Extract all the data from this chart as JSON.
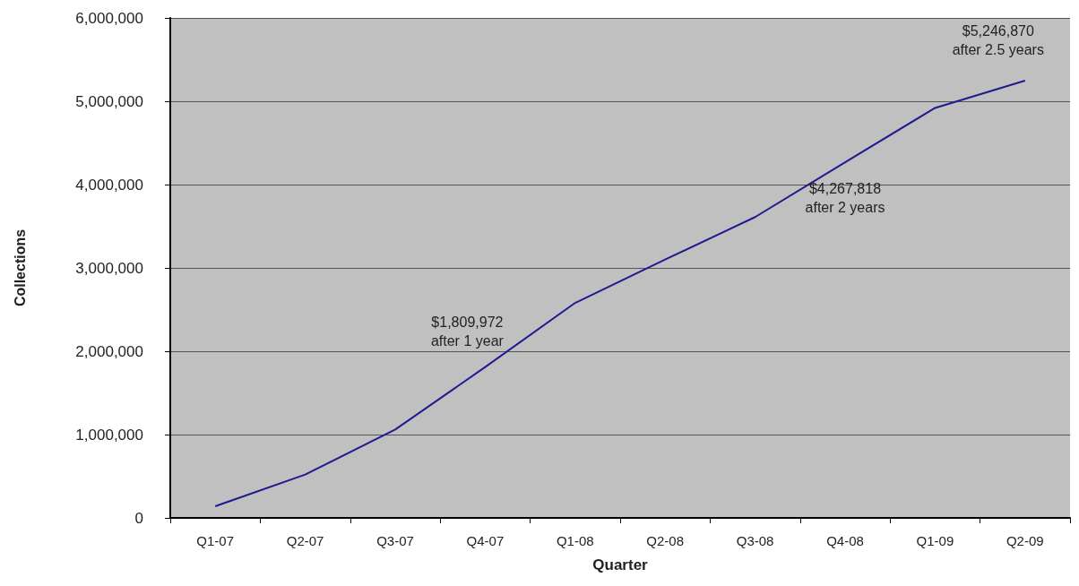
{
  "chart_data": {
    "type": "line",
    "xlabel": "Quarter",
    "ylabel": "Collections",
    "categories": [
      "Q1-07",
      "Q2-07",
      "Q3-07",
      "Q4-07",
      "Q1-08",
      "Q2-08",
      "Q3-08",
      "Q4-08",
      "Q1-09",
      "Q2-09"
    ],
    "series": [
      {
        "color": "#1f1a8f",
        "values": [
          140000,
          520000,
          1060000,
          1809972,
          2580000,
          3100000,
          3610000,
          4267818,
          4920000,
          5246870
        ]
      }
    ],
    "ylim": [
      0,
      6000000
    ],
    "yticks": [
      0,
      {
        "value": 1000000,
        "label": "1,000,000"
      },
      {
        "value": 2000000,
        "label": "2,000,000"
      },
      {
        "value": 3000000,
        "label": "3,000,000"
      },
      {
        "value": 4000000,
        "label": "4,000,000"
      },
      {
        "value": 5000000,
        "label": "5,000,000"
      },
      {
        "value": 6000000,
        "label": "6,000,000"
      }
    ],
    "grid": "y",
    "marker": "none",
    "line_style": "solid",
    "annotations": [
      {
        "text": "$1,809,972\nafter 1 year",
        "x": "Q4-07",
        "y": 1809972
      },
      {
        "text": "$4,267,818\nafter 2 years",
        "x": "Q4-08",
        "y": 4267818
      },
      {
        "text": "$5,246,870\nafter 2.5 years",
        "x": "Q2-09",
        "y": 5246870
      }
    ]
  }
}
